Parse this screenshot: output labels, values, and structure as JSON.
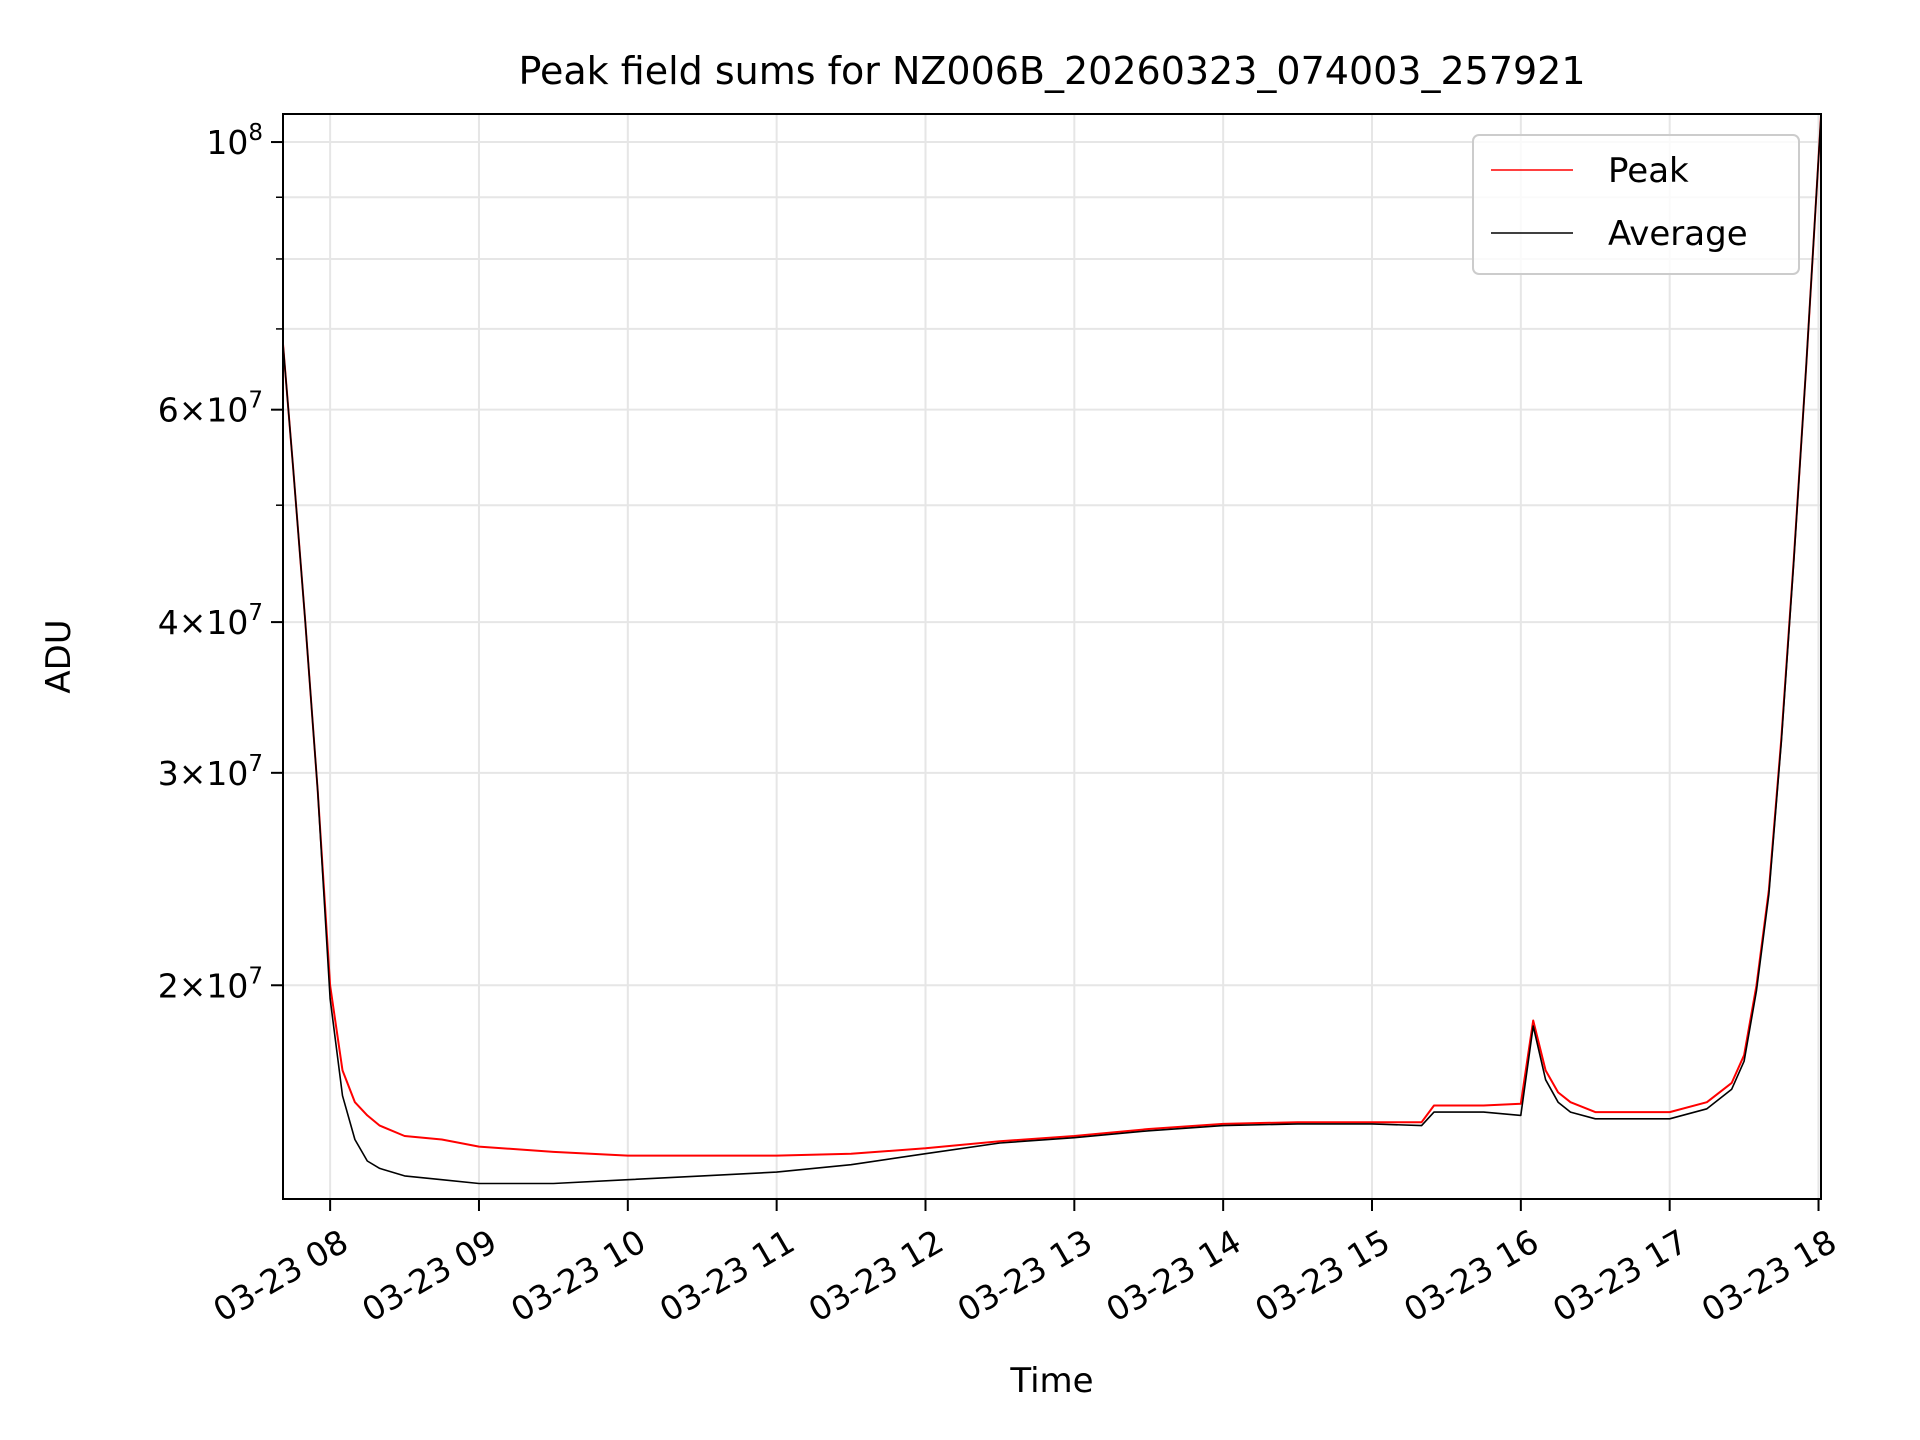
{
  "chart_data": {
    "type": "line",
    "title": "Peak field sums for NZ006B_20260323_074003_257921",
    "xlabel": "Time",
    "ylabel": "ADU",
    "yscale": "log",
    "ylim": [
      13300000,
      105500000
    ],
    "xlim": [
      "2026-03-23 07:41",
      "2026-03-23 18:01"
    ],
    "grid": true,
    "legend_position": "top-right",
    "x_ticks": [
      "2026-03-23 08:00",
      "2026-03-23 09:00",
      "2026-03-23 10:00",
      "2026-03-23 11:00",
      "2026-03-23 12:00",
      "2026-03-23 13:00",
      "2026-03-23 14:00",
      "2026-03-23 15:00",
      "2026-03-23 16:00",
      "2026-03-23 17:00",
      "2026-03-23 18:00"
    ],
    "x_tick_labels": [
      "03-23 08",
      "03-23 09",
      "03-23 10",
      "03-23 11",
      "03-23 12",
      "03-23 13",
      "03-23 14",
      "03-23 15",
      "03-23 16",
      "03-23 17",
      "03-23 18"
    ],
    "y_ticks": [
      {
        "value": 100000000,
        "mantissa": "",
        "exp": "8"
      },
      {
        "value": 60000000,
        "mantissa": "6",
        "exp": "7"
      },
      {
        "value": 40000000,
        "mantissa": "4",
        "exp": "7"
      },
      {
        "value": 30000000,
        "mantissa": "3",
        "exp": "7"
      },
      {
        "value": 20000000,
        "mantissa": "2",
        "exp": "7"
      }
    ],
    "y_minor_ticks": [
      90000000,
      80000000,
      70000000,
      50000000
    ],
    "series": [
      {
        "name": "Peak",
        "color": "#ff0000",
        "x": [
          "2026-03-23 07:41",
          "2026-03-23 07:45",
          "2026-03-23 07:50",
          "2026-03-23 07:55",
          "2026-03-23 08:00",
          "2026-03-23 08:05",
          "2026-03-23 08:10",
          "2026-03-23 08:15",
          "2026-03-23 08:20",
          "2026-03-23 08:30",
          "2026-03-23 08:45",
          "2026-03-23 09:00",
          "2026-03-23 09:30",
          "2026-03-23 10:00",
          "2026-03-23 10:30",
          "2026-03-23 11:00",
          "2026-03-23 11:30",
          "2026-03-23 12:00",
          "2026-03-23 12:30",
          "2026-03-23 13:00",
          "2026-03-23 13:30",
          "2026-03-23 14:00",
          "2026-03-23 14:30",
          "2026-03-23 15:00",
          "2026-03-23 15:20",
          "2026-03-23 15:25",
          "2026-03-23 15:45",
          "2026-03-23 16:00",
          "2026-03-23 16:05",
          "2026-03-23 16:10",
          "2026-03-23 16:15",
          "2026-03-23 16:20",
          "2026-03-23 16:30",
          "2026-03-23 16:45",
          "2026-03-23 17:00",
          "2026-03-23 17:15",
          "2026-03-23 17:25",
          "2026-03-23 17:30",
          "2026-03-23 17:35",
          "2026-03-23 17:40",
          "2026-03-23 17:45",
          "2026-03-23 17:50",
          "2026-03-23 17:55",
          "2026-03-23 18:01"
        ],
        "y": [
          68000000,
          54000000,
          40000000,
          29000000,
          20000000,
          17000000,
          16000000,
          15600000,
          15300000,
          15000000,
          14900000,
          14700000,
          14550000,
          14450000,
          14450000,
          14450000,
          14500000,
          14650000,
          14850000,
          15000000,
          15200000,
          15350000,
          15400000,
          15400000,
          15400000,
          15900000,
          15900000,
          15950000,
          18700000,
          17000000,
          16300000,
          16000000,
          15700000,
          15700000,
          15700000,
          16000000,
          16600000,
          17500000,
          20000000,
          24000000,
          32000000,
          45000000,
          65000000,
          105000000
        ]
      },
      {
        "name": "Average",
        "color": "#000000",
        "x": [
          "2026-03-23 07:41",
          "2026-03-23 07:45",
          "2026-03-23 07:50",
          "2026-03-23 07:55",
          "2026-03-23 08:00",
          "2026-03-23 08:05",
          "2026-03-23 08:10",
          "2026-03-23 08:15",
          "2026-03-23 08:20",
          "2026-03-23 08:30",
          "2026-03-23 08:45",
          "2026-03-23 09:00",
          "2026-03-23 09:30",
          "2026-03-23 10:00",
          "2026-03-23 10:30",
          "2026-03-23 11:00",
          "2026-03-23 11:30",
          "2026-03-23 12:00",
          "2026-03-23 12:30",
          "2026-03-23 13:00",
          "2026-03-23 13:30",
          "2026-03-23 14:00",
          "2026-03-23 14:30",
          "2026-03-23 15:00",
          "2026-03-23 15:20",
          "2026-03-23 15:25",
          "2026-03-23 15:45",
          "2026-03-23 16:00",
          "2026-03-23 16:05",
          "2026-03-23 16:10",
          "2026-03-23 16:15",
          "2026-03-23 16:20",
          "2026-03-23 16:30",
          "2026-03-23 16:45",
          "2026-03-23 17:00",
          "2026-03-23 17:15",
          "2026-03-23 17:25",
          "2026-03-23 17:30",
          "2026-03-23 17:35",
          "2026-03-23 17:40",
          "2026-03-23 17:45",
          "2026-03-23 17:50",
          "2026-03-23 17:55",
          "2026-03-23 18:01"
        ],
        "y": [
          68000000,
          54000000,
          40000000,
          29000000,
          19500000,
          16200000,
          14900000,
          14300000,
          14100000,
          13900000,
          13800000,
          13700000,
          13700000,
          13800000,
          13900000,
          14000000,
          14200000,
          14500000,
          14800000,
          14950000,
          15150000,
          15300000,
          15350000,
          15350000,
          15300000,
          15700000,
          15700000,
          15600000,
          18500000,
          16700000,
          16000000,
          15700000,
          15500000,
          15500000,
          15500000,
          15800000,
          16400000,
          17300000,
          19800000,
          23800000,
          31800000,
          44800000,
          65000000,
          105000000
        ]
      }
    ]
  }
}
